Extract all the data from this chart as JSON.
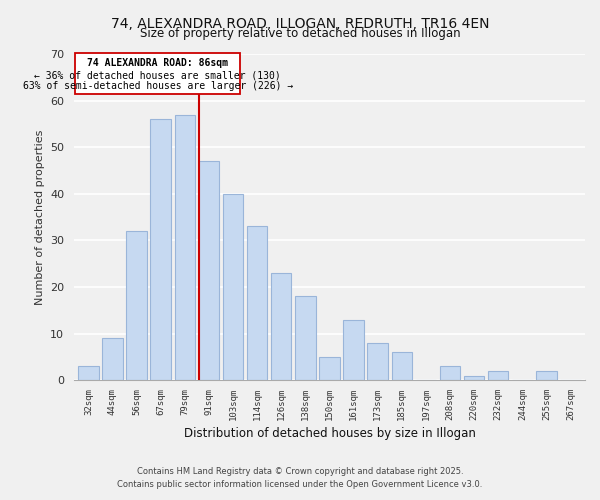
{
  "title": "74, ALEXANDRA ROAD, ILLOGAN, REDRUTH, TR16 4EN",
  "subtitle": "Size of property relative to detached houses in Illogan",
  "xlabel": "Distribution of detached houses by size in Illogan",
  "ylabel": "Number of detached properties",
  "categories": [
    "32sqm",
    "44sqm",
    "56sqm",
    "67sqm",
    "79sqm",
    "91sqm",
    "103sqm",
    "114sqm",
    "126sqm",
    "138sqm",
    "150sqm",
    "161sqm",
    "173sqm",
    "185sqm",
    "197sqm",
    "208sqm",
    "220sqm",
    "232sqm",
    "244sqm",
    "255sqm",
    "267sqm"
  ],
  "values": [
    3,
    9,
    32,
    56,
    57,
    47,
    40,
    33,
    23,
    18,
    5,
    13,
    8,
    6,
    0,
    3,
    1,
    2,
    0,
    2,
    0
  ],
  "bar_color": "#c6d9f1",
  "bar_edge_color": "#9ab5d9",
  "marker_line_color": "#cc0000",
  "marker_label": "74 ALEXANDRA ROAD: 86sqm",
  "annotation_line1": "← 36% of detached houses are smaller (130)",
  "annotation_line2": "63% of semi-detached houses are larger (226) →",
  "ylim": [
    0,
    70
  ],
  "yticks": [
    0,
    10,
    20,
    30,
    40,
    50,
    60,
    70
  ],
  "background_color": "#f0f0f0",
  "grid_color": "#ffffff",
  "footer1": "Contains HM Land Registry data © Crown copyright and database right 2025.",
  "footer2": "Contains public sector information licensed under the Open Government Licence v3.0."
}
